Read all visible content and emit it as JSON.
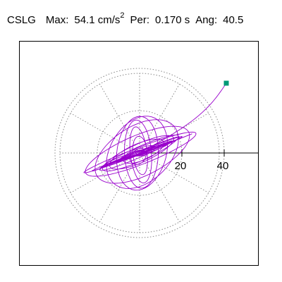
{
  "header": {
    "station": "CSLG",
    "max_label": "Max:",
    "max_value": "54.1 cm/s",
    "max_exp": "2",
    "per_label": "Per:",
    "per_value": "0.170 s",
    "ang_label": "Ang:",
    "ang_value": "40.5"
  },
  "chart_data": {
    "type": "scatter",
    "title": "CSLG Max: 54.1 cm/s2 Per: 0.170 s Ang: 40.5",
    "polar_rings": [
      20,
      40
    ],
    "tick_labels": [
      "20",
      "40"
    ],
    "axis_range": [
      -60,
      60
    ],
    "grid": "dotted polar",
    "endpoint": {
      "x": 41,
      "y": 33
    },
    "colors": {
      "trace": "#9900cc",
      "endpoint": "#009977",
      "grid": "#888888"
    }
  }
}
